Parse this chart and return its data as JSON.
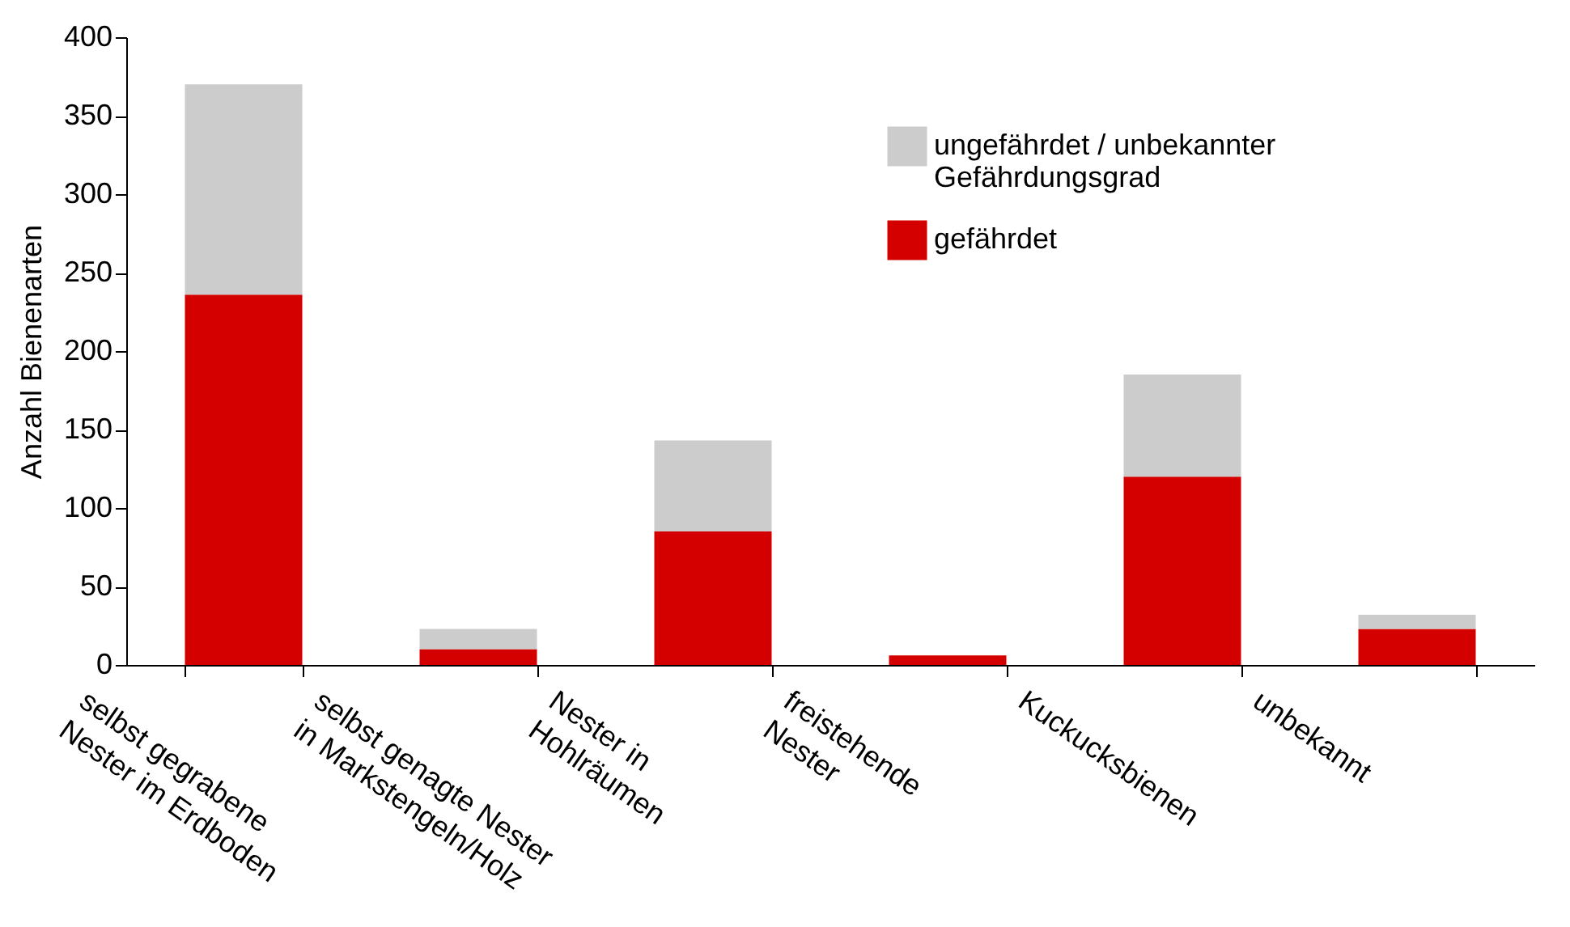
{
  "chart_data": {
    "type": "bar",
    "stacked": true,
    "ylabel": "Anzahl Bienenarten",
    "categories": [
      "selbst gegrabene\nNester im Erdboden",
      "selbst genagte Nester\nin Markstengeln/Holz",
      "Nester in\nHohlräumen",
      "freistehende\nNester",
      "Kuckucksbienen",
      "unbekannt"
    ],
    "series": [
      {
        "name": "gefährdet",
        "color": "#d40000",
        "values": [
          236,
          10,
          85,
          6,
          120,
          23
        ]
      },
      {
        "name": "ungefährdet / unbekannter\nGefährdungsgrad",
        "color": "#cccccc",
        "values": [
          134,
          13,
          58,
          0,
          65,
          9
        ]
      }
    ],
    "ylim": [
      0,
      400
    ],
    "yticks": [
      0,
      50,
      100,
      150,
      200,
      250,
      300,
      350,
      400
    ],
    "grid": false,
    "legend": "top right"
  }
}
